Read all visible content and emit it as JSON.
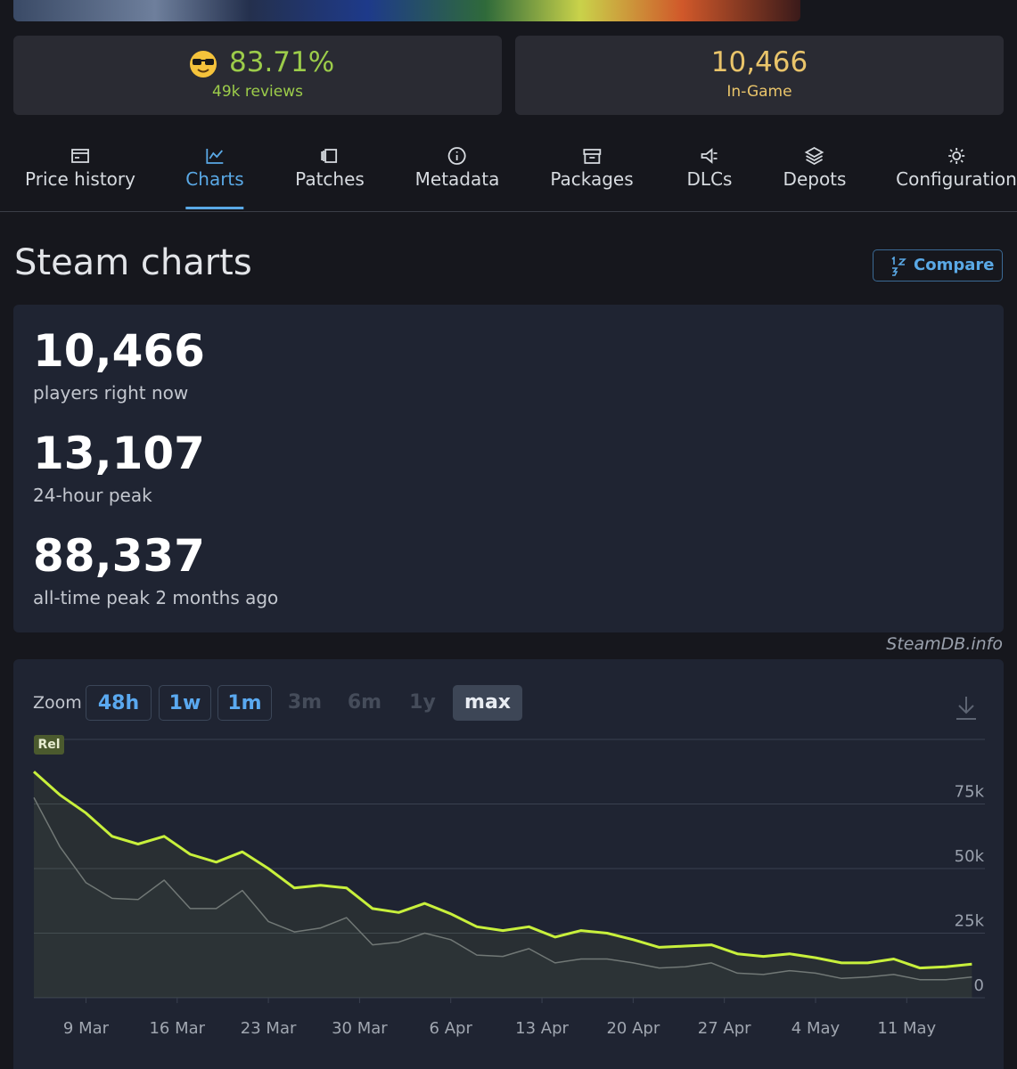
{
  "summary": {
    "rating": "83.71%",
    "reviews": "49k reviews",
    "players": "10,466",
    "players_label": "In-Game"
  },
  "tabs": [
    "Price history",
    "Charts",
    "Patches",
    "Metadata",
    "Packages",
    "DLCs",
    "Depots",
    "Configuration"
  ],
  "active_tab": "Charts",
  "heading": "Steam charts",
  "compare": "Compare",
  "stats": [
    {
      "value": "10,466",
      "label": "players right now"
    },
    {
      "value": "13,107",
      "label": "24-hour peak"
    },
    {
      "value": "88,337",
      "label": "all-time peak 2 months ago"
    }
  ],
  "source": "SteamDB.info",
  "zoom": {
    "label": "Zoom",
    "options": [
      {
        "label": "48h",
        "state": "enabled"
      },
      {
        "label": "1w",
        "state": "enabled"
      },
      {
        "label": "1m",
        "state": "enabled"
      },
      {
        "label": "3m",
        "state": "disabled"
      },
      {
        "label": "6m",
        "state": "disabled"
      },
      {
        "label": "1y",
        "state": "disabled"
      },
      {
        "label": "max",
        "state": "active"
      }
    ]
  },
  "chart_data": {
    "type": "line",
    "annotations": [
      "Rel"
    ],
    "x": [
      "5 Mar",
      "7 Mar",
      "9 Mar",
      "11 Mar",
      "13 Mar",
      "15 Mar",
      "17 Mar",
      "19 Mar",
      "21 Mar",
      "23 Mar",
      "25 Mar",
      "27 Mar",
      "29 Mar",
      "31 Mar",
      "2 Apr",
      "4 Apr",
      "6 Apr",
      "8 Apr",
      "10 Apr",
      "12 Apr",
      "14 Apr",
      "16 Apr",
      "18 Apr",
      "20 Apr",
      "22 Apr",
      "24 Apr",
      "26 Apr",
      "28 Apr",
      "30 Apr",
      "2 May",
      "4 May",
      "6 May",
      "8 May",
      "10 May",
      "12 May",
      "14 May",
      "16 May"
    ],
    "xlim": [
      "5 Mar",
      "17 May"
    ],
    "xticks": [
      "9 Mar",
      "16 Mar",
      "23 Mar",
      "30 Mar",
      "6 Apr",
      "13 Apr",
      "20 Apr",
      "27 Apr",
      "4 May",
      "11 May"
    ],
    "ylim": [
      0,
      100000
    ],
    "yticks": [
      0,
      {
        "value": 25000,
        "label": "25k"
      },
      {
        "value": 50000,
        "label": "50k"
      },
      {
        "value": 75000,
        "label": "75k"
      }
    ],
    "grid": true,
    "series": [
      {
        "color": "#c8f03c",
        "values": [
          87500,
          78500,
          71500,
          62500,
          59500,
          62500,
          55500,
          52500,
          56500,
          50000,
          42500,
          43500,
          42500,
          34500,
          33000,
          36500,
          32500,
          27500,
          26000,
          27500,
          23500,
          26000,
          25000,
          22500,
          19500,
          20000,
          20500,
          17000,
          16000,
          17000,
          15500,
          13500,
          13500,
          15000,
          11500,
          12000,
          13000
        ]
      },
      {
        "color": "#6c717a",
        "values": [
          77500,
          58500,
          44500,
          38500,
          38000,
          45500,
          34500,
          34500,
          41500,
          29500,
          25500,
          27000,
          31000,
          20500,
          21500,
          25000,
          22500,
          16500,
          16000,
          19000,
          13500,
          15000,
          15000,
          13500,
          11500,
          12000,
          13500,
          9500,
          9000,
          10500,
          9500,
          7500,
          8000,
          9000,
          7000,
          7000,
          8000
        ]
      }
    ]
  }
}
